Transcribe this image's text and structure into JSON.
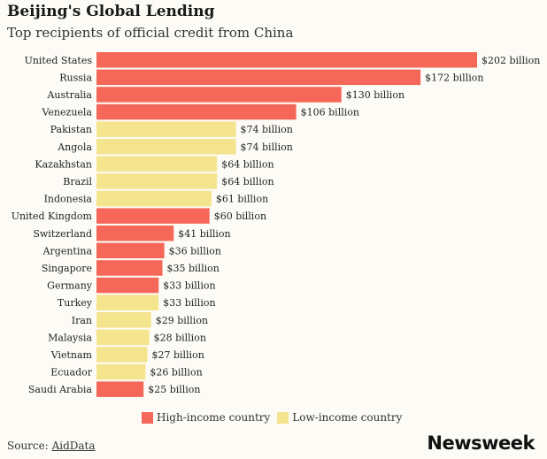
{
  "colors": {
    "high": "#f56758",
    "low": "#f5e48e",
    "background": "#fcfbf6"
  },
  "legend": {
    "high_label": "High-income country",
    "low_label": "Low-income country"
  },
  "source": {
    "prefix": "Source: ",
    "name": "AidData"
  },
  "logo": "Newsweek",
  "chart_data": {
    "type": "bar",
    "orientation": "horizontal",
    "title": "Beijing's Global Lending",
    "subtitle": "Top recipients of official credit from China",
    "categories": [
      "United States",
      "Russia",
      "Australia",
      "Venezuela",
      "Pakistan",
      "Angola",
      "Kazakhstan",
      "Brazil",
      "Indonesia",
      "United Kingdom",
      "Switzerland",
      "Argentina",
      "Singapore",
      "Germany",
      "Turkey",
      "Iran",
      "Malaysia",
      "Vietnam",
      "Ecuador",
      "Saudi Arabia"
    ],
    "values": [
      202,
      172,
      130,
      106,
      74,
      74,
      64,
      64,
      61,
      60,
      41,
      36,
      35,
      33,
      33,
      29,
      28,
      27,
      26,
      25
    ],
    "value_labels": [
      "$202 billion",
      "$172 billion",
      "$130 billion",
      "$106 billion",
      "$74 billion",
      "$74 billion",
      "$64 billion",
      "$64 billion",
      "$61 billion",
      "$60 billion",
      "$41 billion",
      "$36 billion",
      "$35 billion",
      "$33 billion",
      "$33 billion",
      "$29 billion",
      "$28 billion",
      "$27 billion",
      "$26 billion",
      "$25 billion"
    ],
    "income_group": [
      "high",
      "high",
      "high",
      "high",
      "low",
      "low",
      "low",
      "low",
      "low",
      "high",
      "high",
      "high",
      "high",
      "high",
      "low",
      "low",
      "low",
      "low",
      "low",
      "high"
    ],
    "legend_entries": [
      "High-income country",
      "Low-income country"
    ],
    "xlim": [
      0,
      202
    ],
    "grid": false,
    "legend_position": "bottom"
  }
}
